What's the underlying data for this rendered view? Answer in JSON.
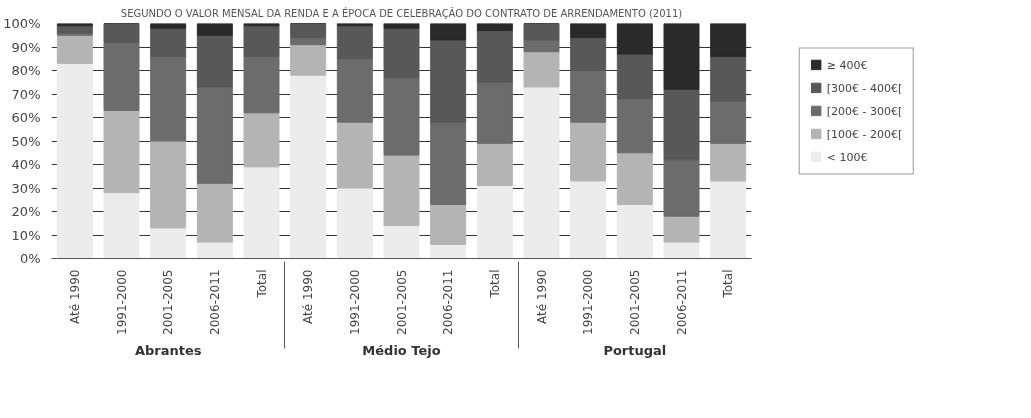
{
  "chart_data": {
    "type": "bar",
    "stacked": true,
    "title": "SEGUNDO O VALOR MENSAL DA RENDA E A ÉPOCA DE CELEBRAÇÃO DO CONTRATO DE ARRENDAMENTO (2011)",
    "categories": [
      "Até 1990",
      "1991-2000",
      "2001-2005",
      "2006-2011",
      "Total",
      "Até 1990",
      "1991-2000",
      "2001-2005",
      "2006-2011",
      "Total",
      "Até 1990",
      "1991-2000",
      "2001-2005",
      "2006-2011",
      "Total"
    ],
    "annotations": [
      "Abrantes",
      "Médio Tejo",
      "Portugal"
    ],
    "series": [
      {
        "name": "< 100€",
        "color": "#ececec",
        "values": [
          83,
          28,
          13,
          7,
          39,
          78,
          30,
          14,
          6,
          31,
          73,
          33,
          23,
          7,
          33
        ]
      },
      {
        "name": "[100€ - 200€[",
        "color": "#b4b4b4",
        "values": [
          12,
          35,
          37,
          25,
          23,
          13,
          28,
          30,
          17,
          18,
          15,
          25,
          22,
          11,
          16
        ]
      },
      {
        "name": "[200€ - 300€[",
        "color": "#6c6c6c",
        "values": [
          1,
          29,
          36,
          41,
          24,
          3,
          27,
          33,
          35,
          26,
          5,
          22,
          23,
          24,
          18
        ]
      },
      {
        "name": "[300€ - 400€[",
        "color": "#585858",
        "values": [
          3,
          8,
          12,
          22,
          13,
          6,
          14,
          21,
          35,
          22,
          7,
          14,
          19,
          30,
          19
        ]
      },
      {
        "name": "≥ 400€",
        "color": "#2a2a2a",
        "values": [
          1,
          0,
          2,
          5,
          1,
          0,
          1,
          2,
          7,
          3,
          0,
          6,
          13,
          28,
          14
        ]
      }
    ],
    "ylim": [
      0,
      100
    ],
    "yticks": [
      {
        "value": 0,
        "label": "0%"
      },
      {
        "value": 10,
        "label": "10%"
      },
      {
        "value": 20,
        "label": "20%"
      },
      {
        "value": 30,
        "label": "30%"
      },
      {
        "value": 40,
        "label": "40%"
      },
      {
        "value": 50,
        "label": "50%"
      },
      {
        "value": 60,
        "label": "60%"
      },
      {
        "value": 70,
        "label": "70%"
      },
      {
        "value": 80,
        "label": "80%"
      },
      {
        "value": 90,
        "label": "90%"
      },
      {
        "value": 100,
        "label": "100%"
      }
    ],
    "grid": "y",
    "legend": "right"
  }
}
